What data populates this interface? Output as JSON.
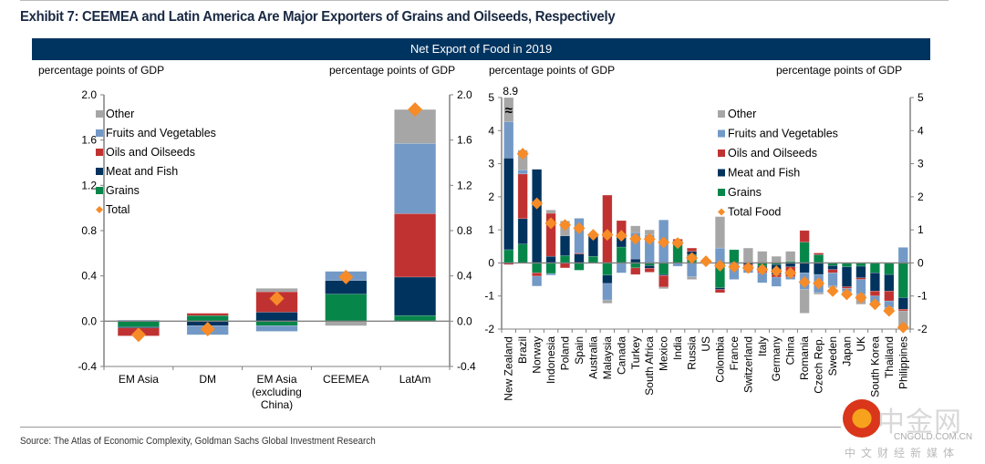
{
  "title": "Exhibit 7: CEEMEA and Latin America Are Major Exporters of Grains and Oilseeds, Respectively",
  "banner": "Net Export of Food in 2019",
  "source": "Source: The Atlas of Economic Complexity, Goldman Sachs Global Investment Research",
  "watermark": {
    "cn": "中金网",
    "en": "CNGOLD.COM.CN",
    "sub": "中文财经新媒体"
  },
  "colors": {
    "Other": "#a6a6a6",
    "Fruits and Vegetables": "#7399c6",
    "Oils and Oilseeds": "#c03232",
    "Meat and Fish": "#00335e",
    "Grains": "#07864a",
    "Total": "#f68b28"
  },
  "chart_data": [
    {
      "type": "bar",
      "stacked": true,
      "title": "",
      "ylabel_left": "percentage points of GDP",
      "ylabel_right": "percentage points of GDP",
      "ylim": [
        -0.4,
        2.0
      ],
      "yticks": [
        "-0.4",
        "0.0",
        "0.4",
        "0.8",
        "1.2",
        "1.6",
        "2.0"
      ],
      "ytick_values": [
        -0.4,
        0.0,
        0.4,
        0.8,
        1.2,
        1.6,
        2.0
      ],
      "legend": [
        "Other",
        "Fruits and Vegetables",
        "Oils and Oilseeds",
        "Meat and Fish",
        "Grains",
        "Total"
      ],
      "legend_position": "top-left",
      "categories": [
        "EM Asia",
        "DM",
        "EM Asia (excluding China)",
        "CEEMEA",
        "LatAm"
      ],
      "category_lines": [
        [
          "EM Asia"
        ],
        [
          "DM"
        ],
        [
          "EM Asia",
          "(excluding",
          "China)"
        ],
        [
          "CEEMEA"
        ],
        [
          "LatAm"
        ]
      ],
      "series": [
        {
          "name": "Grains",
          "values": [
            -0.05,
            0.05,
            -0.04,
            0.24,
            0.05
          ]
        },
        {
          "name": "Meat and Fish",
          "values": [
            -0.01,
            -0.04,
            0.08,
            0.12,
            0.34
          ]
        },
        {
          "name": "Oils and Oilseeds",
          "values": [
            -0.07,
            0.02,
            0.18,
            0.0,
            0.56
          ]
        },
        {
          "name": "Fruits and Vegetables",
          "values": [
            0.01,
            -0.08,
            -0.05,
            0.08,
            0.62
          ]
        },
        {
          "name": "Other",
          "values": [
            0.0,
            0.0,
            0.03,
            -0.04,
            0.3
          ]
        }
      ],
      "total": [
        -0.12,
        -0.07,
        0.2,
        0.39,
        1.87
      ]
    },
    {
      "type": "bar",
      "stacked": true,
      "title": "",
      "ylabel_left": "percentage points of GDP",
      "ylabel_right": "percentage points of GDP",
      "ylim": [
        -2,
        5
      ],
      "yticks": [
        "-2",
        "-1",
        "0",
        "1",
        "2",
        "3",
        "4",
        "5"
      ],
      "ytick_values": [
        -2,
        -1,
        0,
        1,
        2,
        3,
        4,
        5
      ],
      "annotation": "8.9",
      "break_symbol": "≈",
      "legend": [
        "Other",
        "Fruits and Vegetables",
        "Oils and Oilseeds",
        "Meat and Fish",
        "Grains",
        "Total Food"
      ],
      "legend_position": "top-right",
      "categories": [
        "New Zealand",
        "Brazil",
        "Norway",
        "Indonesia",
        "Poland",
        "Spain",
        "Australia",
        "Malaysia",
        "Canada",
        "Turkey",
        "South Africa",
        "Mexico",
        "India",
        "Russia",
        "US",
        "Colombia",
        "France",
        "Switzerland",
        "Italy",
        "Germany",
        "China",
        "Romania",
        "Czech Rep.",
        "Sweden",
        "Japan",
        "UK",
        "South Korea",
        "Thailand",
        "Philippines"
      ],
      "series": [
        {
          "name": "Grains",
          "values": [
            0.4,
            0.57,
            -0.3,
            -0.32,
            0.22,
            -0.22,
            0.2,
            -0.37,
            0.48,
            -0.15,
            -0.08,
            -0.35,
            0.55,
            0.25,
            0.0,
            -0.75,
            0.4,
            0.0,
            -0.1,
            -0.05,
            0.05,
            0.63,
            0.25,
            -0.08,
            -0.12,
            -0.1,
            -0.3,
            -0.35,
            -1.05
          ]
        },
        {
          "name": "Meat and Fish",
          "values": [
            2.77,
            0.77,
            2.83,
            0.2,
            0.6,
            0.27,
            0.65,
            -0.25,
            0.3,
            0.12,
            -0.08,
            -0.03,
            0.12,
            0.1,
            0.0,
            -0.05,
            0.0,
            -0.05,
            -0.15,
            -0.3,
            -0.12,
            -0.3,
            -0.35,
            -0.12,
            -0.6,
            -0.35,
            -0.55,
            -0.5,
            -0.35
          ]
        },
        {
          "name": "Oils and Oilseeds",
          "values": [
            -0.05,
            1.35,
            -0.1,
            1.3,
            -0.15,
            0.03,
            0.0,
            2.05,
            0.5,
            -0.2,
            -0.12,
            -0.35,
            0.05,
            0.1,
            0.05,
            -0.1,
            0.0,
            -0.05,
            -0.05,
            -0.08,
            -0.3,
            0.35,
            0.05,
            -0.1,
            -0.05,
            -0.05,
            -0.15,
            -0.3,
            -0.05
          ]
        },
        {
          "name": "Fruits and Vegetables",
          "values": [
            1.1,
            0.12,
            -0.3,
            -0.05,
            0.0,
            1.05,
            0.0,
            -0.5,
            -0.3,
            0.8,
            0.85,
            1.3,
            -0.1,
            -0.42,
            0.0,
            0.45,
            -0.5,
            -0.2,
            -0.3,
            -0.28,
            -0.08,
            -0.5,
            -0.55,
            -0.4,
            -0.1,
            -0.45,
            -0.2,
            -0.2,
            0.47
          ]
        },
        {
          "name": "Other",
          "values": [
            4.63,
            0.6,
            0.0,
            0.1,
            0.45,
            0.0,
            0.0,
            -0.1,
            0.0,
            0.2,
            0.15,
            -0.05,
            0.0,
            -0.08,
            0.0,
            0.95,
            0.0,
            0.45,
            0.35,
            0.2,
            0.3,
            -0.72,
            -0.05,
            -0.05,
            -0.05,
            -0.3,
            -0.02,
            -0.05,
            -0.48
          ]
        }
      ],
      "total_food": [
        8.9,
        3.3,
        1.8,
        1.2,
        1.15,
        1.05,
        0.85,
        0.85,
        0.82,
        0.73,
        0.72,
        0.62,
        0.6,
        0.15,
        0.05,
        -0.08,
        -0.12,
        -0.15,
        -0.2,
        -0.25,
        -0.3,
        -0.58,
        -0.62,
        -0.85,
        -0.95,
        -1.05,
        -1.25,
        -1.45,
        -1.95
      ],
      "total_food_display": [
        null,
        3.3,
        1.8,
        1.2,
        1.15,
        1.05,
        0.85,
        0.85,
        0.82,
        0.73,
        0.72,
        0.62,
        0.6,
        0.15,
        0.05,
        -0.08,
        -0.12,
        -0.15,
        -0.2,
        -0.25,
        -0.3,
        -0.58,
        -0.62,
        -0.85,
        -0.95,
        -1.05,
        -1.25,
        -1.45,
        -1.95
      ]
    }
  ]
}
